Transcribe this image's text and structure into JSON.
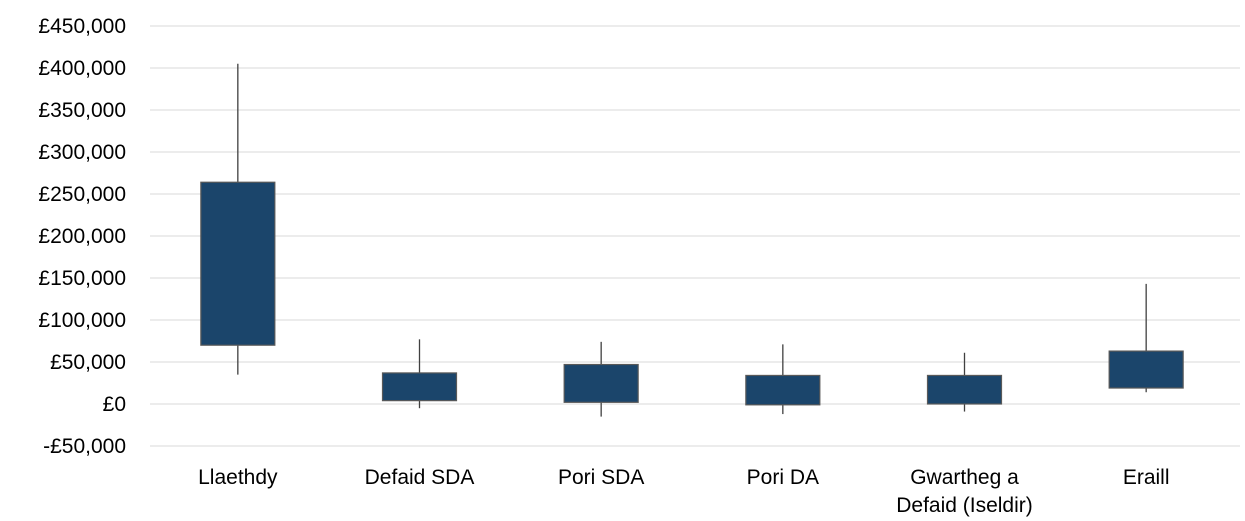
{
  "chart_data": {
    "type": "box",
    "title": "",
    "xlabel": "",
    "ylabel": "",
    "ylim": [
      -50000,
      450000
    ],
    "yticks": [
      -50000,
      0,
      50000,
      100000,
      150000,
      200000,
      250000,
      300000,
      350000,
      400000,
      450000
    ],
    "ytick_labels": [
      "-£50,000",
      "£0",
      "£50,000",
      "£100,000",
      "£150,000",
      "£200,000",
      "£250,000",
      "£300,000",
      "£350,000",
      "£400,000",
      "£450,000"
    ],
    "grid": true,
    "legend": "none",
    "colors": {
      "box_fill": "#1b456b",
      "box_stroke": "#595959",
      "whisker": "#404040",
      "grid": "#d9d9d9"
    },
    "categories": [
      {
        "label_lines": [
          "Llaethdy"
        ],
        "min": 35000,
        "q1": 70000,
        "q3": 264000,
        "max": 405000
      },
      {
        "label_lines": [
          "Defaid SDA"
        ],
        "min": -5000,
        "q1": 4000,
        "q3": 37000,
        "max": 77000
      },
      {
        "label_lines": [
          "Pori SDA"
        ],
        "min": -15000,
        "q1": 2000,
        "q3": 47000,
        "max": 74000
      },
      {
        "label_lines": [
          "Pori DA"
        ],
        "min": -12000,
        "q1": -1000,
        "q3": 34000,
        "max": 71000
      },
      {
        "label_lines": [
          "Gwartheg a",
          "Defaid (Iseldir)"
        ],
        "min": -9000,
        "q1": 0,
        "q3": 34000,
        "max": 61000
      },
      {
        "label_lines": [
          "Eraill"
        ],
        "min": 14000,
        "q1": 19000,
        "q3": 63000,
        "max": 143000
      }
    ]
  }
}
